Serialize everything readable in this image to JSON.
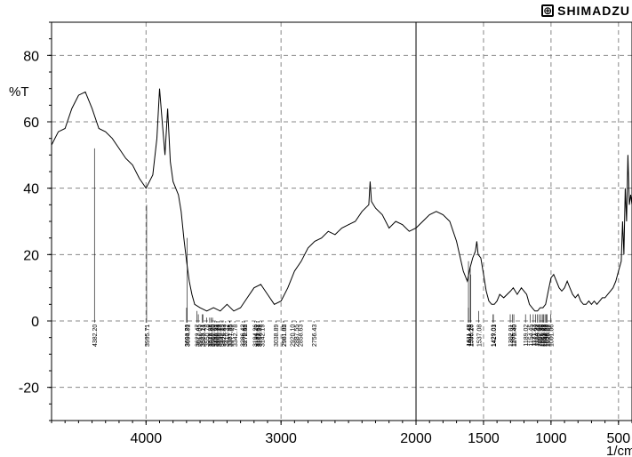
{
  "brand": {
    "name": "SHIMADZU",
    "logo_icon": "shimadzu-logo-icon"
  },
  "chart_data": {
    "type": "line",
    "title": "",
    "xlabel": "1/cm",
    "ylabel": "%T",
    "xlim": [
      4700,
      400
    ],
    "ylim": [
      -30,
      90
    ],
    "x_ticks": [
      4000,
      3000,
      2000,
      1500,
      1000,
      500
    ],
    "y_ticks": [
      80,
      60,
      40,
      20,
      0,
      -20
    ],
    "grid": true,
    "x_axis_reversed": true,
    "series": [
      {
        "color": "#000000",
        "points": [
          [
            4700,
            53
          ],
          [
            4650,
            57
          ],
          [
            4600,
            58
          ],
          [
            4550,
            64
          ],
          [
            4500,
            68
          ],
          [
            4450,
            69
          ],
          [
            4400,
            64
          ],
          [
            4350,
            58
          ],
          [
            4300,
            57
          ],
          [
            4250,
            55
          ],
          [
            4200,
            52
          ],
          [
            4150,
            49
          ],
          [
            4100,
            47
          ],
          [
            4050,
            43
          ],
          [
            4000,
            40
          ],
          [
            3950,
            44
          ],
          [
            3920,
            55
          ],
          [
            3900,
            70
          ],
          [
            3880,
            60
          ],
          [
            3860,
            50
          ],
          [
            3840,
            64
          ],
          [
            3820,
            48
          ],
          [
            3800,
            42
          ],
          [
            3780,
            40
          ],
          [
            3760,
            38
          ],
          [
            3740,
            33
          ],
          [
            3720,
            25
          ],
          [
            3700,
            18
          ],
          [
            3680,
            12
          ],
          [
            3660,
            8
          ],
          [
            3640,
            5
          ],
          [
            3600,
            4
          ],
          [
            3550,
            3
          ],
          [
            3500,
            4
          ],
          [
            3450,
            3
          ],
          [
            3400,
            5
          ],
          [
            3350,
            3
          ],
          [
            3300,
            4
          ],
          [
            3250,
            7
          ],
          [
            3200,
            10
          ],
          [
            3150,
            11
          ],
          [
            3100,
            8
          ],
          [
            3050,
            5
          ],
          [
            3000,
            6
          ],
          [
            2950,
            10
          ],
          [
            2900,
            15
          ],
          [
            2850,
            18
          ],
          [
            2800,
            22
          ],
          [
            2750,
            24
          ],
          [
            2700,
            25
          ],
          [
            2650,
            27
          ],
          [
            2600,
            26
          ],
          [
            2550,
            28
          ],
          [
            2500,
            29
          ],
          [
            2450,
            30
          ],
          [
            2400,
            33
          ],
          [
            2350,
            35
          ],
          [
            2340,
            42
          ],
          [
            2330,
            36
          ],
          [
            2300,
            34
          ],
          [
            2250,
            32
          ],
          [
            2200,
            28
          ],
          [
            2150,
            30
          ],
          [
            2100,
            29
          ],
          [
            2050,
            27
          ],
          [
            2000,
            28
          ],
          [
            1950,
            30
          ],
          [
            1900,
            32
          ],
          [
            1850,
            33
          ],
          [
            1800,
            32
          ],
          [
            1750,
            30
          ],
          [
            1700,
            24
          ],
          [
            1650,
            15
          ],
          [
            1620,
            12
          ],
          [
            1600,
            16
          ],
          [
            1580,
            19
          ],
          [
            1560,
            21
          ],
          [
            1550,
            24
          ],
          [
            1540,
            20
          ],
          [
            1520,
            19
          ],
          [
            1500,
            14
          ],
          [
            1480,
            9
          ],
          [
            1460,
            6
          ],
          [
            1440,
            5
          ],
          [
            1420,
            5
          ],
          [
            1400,
            6
          ],
          [
            1380,
            8
          ],
          [
            1350,
            7
          ],
          [
            1300,
            9
          ],
          [
            1280,
            10
          ],
          [
            1250,
            8
          ],
          [
            1220,
            10
          ],
          [
            1200,
            9
          ],
          [
            1180,
            8
          ],
          [
            1160,
            5
          ],
          [
            1140,
            4
          ],
          [
            1120,
            3
          ],
          [
            1100,
            3
          ],
          [
            1080,
            4
          ],
          [
            1060,
            4
          ],
          [
            1040,
            5
          ],
          [
            1020,
            9
          ],
          [
            1000,
            13
          ],
          [
            980,
            14
          ],
          [
            960,
            12
          ],
          [
            940,
            10
          ],
          [
            920,
            9
          ],
          [
            900,
            10
          ],
          [
            880,
            12
          ],
          [
            860,
            10
          ],
          [
            840,
            8
          ],
          [
            820,
            7
          ],
          [
            800,
            8
          ],
          [
            780,
            6
          ],
          [
            760,
            5
          ],
          [
            740,
            5
          ],
          [
            720,
            6
          ],
          [
            700,
            5
          ],
          [
            680,
            6
          ],
          [
            660,
            5
          ],
          [
            640,
            6
          ],
          [
            620,
            7
          ],
          [
            600,
            7
          ],
          [
            580,
            8
          ],
          [
            560,
            9
          ],
          [
            540,
            10
          ],
          [
            520,
            12
          ],
          [
            500,
            15
          ],
          [
            480,
            18
          ],
          [
            470,
            30
          ],
          [
            460,
            20
          ],
          [
            450,
            40
          ],
          [
            440,
            30
          ],
          [
            430,
            50
          ],
          [
            420,
            35
          ],
          [
            410,
            38
          ],
          [
            400,
            35
          ]
        ]
      }
    ],
    "peak_labels": [
      {
        "wn": 4382.2,
        "text": "4382.20",
        "y": 52
      },
      {
        "wn": 3995.71,
        "text": "3995.71",
        "y": 35
      },
      {
        "wn": 3694.81,
        "text": "3694.81",
        "y": 25
      },
      {
        "wn": 3699.7,
        "text": "3699.70",
        "y": 4
      },
      {
        "wn": 3622.47,
        "text": "3622.47",
        "y": 3
      },
      {
        "wn": 3612.85,
        "text": "3612.85",
        "y": 2
      },
      {
        "wn": 3583.14,
        "text": "3583.14",
        "y": 2
      },
      {
        "wn": 3579.21,
        "text": "3579.21",
        "y": 2
      },
      {
        "wn": 3550.78,
        "text": "3550.78",
        "y": 1
      },
      {
        "wn": 3528.88,
        "text": "3528.88",
        "y": 1
      },
      {
        "wn": 3516.45,
        "text": "3516.45",
        "y": 1
      },
      {
        "wn": 3507.7,
        "text": "3507.70",
        "y": 1
      },
      {
        "wn": 3489.9,
        "text": "3489.90",
        "y": 0
      },
      {
        "wn": 3480.31,
        "text": "3480.31",
        "y": 0
      },
      {
        "wn": 3469.1,
        "text": "3469.10",
        "y": 0
      },
      {
        "wn": 3459.43,
        "text": "3459.43",
        "y": 0
      },
      {
        "wn": 3442.13,
        "text": "3442.13",
        "y": 0
      },
      {
        "wn": 3429.83,
        "text": "3429.83",
        "y": 0
      },
      {
        "wn": 3410.32,
        "text": "3410.32",
        "y": 0
      },
      {
        "wn": 3381.35,
        "text": "3381.35",
        "y": 0
      },
      {
        "wn": 3377.95,
        "text": "3377.95",
        "y": 0
      },
      {
        "wn": 3342.78,
        "text": "3342.78",
        "y": 0
      },
      {
        "wn": 3286.42,
        "text": "3286.42",
        "y": 0
      },
      {
        "wn": 3272.52,
        "text": "3272.52",
        "y": 0
      },
      {
        "wn": 3270.45,
        "text": "3270.45",
        "y": 0
      },
      {
        "wn": 3194.26,
        "text": "3194.26",
        "y": 0
      },
      {
        "wn": 3181.72,
        "text": "3181.72",
        "y": 0
      },
      {
        "wn": 3172.07,
        "text": "3172.07",
        "y": 0
      },
      {
        "wn": 3163.39,
        "text": "3163.39",
        "y": 0
      },
      {
        "wn": 3142.19,
        "text": "3142.19",
        "y": 0
      },
      {
        "wn": 3038.89,
        "text": "3038.89",
        "y": 0
      },
      {
        "wn": 2981.82,
        "text": "2981.82",
        "y": 0
      },
      {
        "wn": 2981.05,
        "text": "2981.05",
        "y": 0
      },
      {
        "wn": 2920.1,
        "text": "2920.10",
        "y": 0
      },
      {
        "wn": 2887.55,
        "text": "2887.55",
        "y": 0
      },
      {
        "wn": 2858.63,
        "text": "2858.63",
        "y": 0
      },
      {
        "wn": 2756.43,
        "text": "2756.43",
        "y": 0
      },
      {
        "wn": 1611.43,
        "text": "1611.43",
        "y": 18
      },
      {
        "wn": 1598.18,
        "text": "1598.18",
        "y": 16
      },
      {
        "wn": 1595.2,
        "text": "1595.20",
        "y": 14
      },
      {
        "wn": 1611.45,
        "text": "1611.45",
        "y": 4
      },
      {
        "wn": 1537.08,
        "text": "1537.08",
        "y": 3
      },
      {
        "wn": 1427.03,
        "text": "1427.03",
        "y": 2
      },
      {
        "wn": 1429.01,
        "text": "1429.01",
        "y": 2
      },
      {
        "wn": 1302.01,
        "text": "1302.01",
        "y": 2
      },
      {
        "wn": 1285.35,
        "text": "1285.35",
        "y": 2
      },
      {
        "wn": 1275.4,
        "text": "1275.40",
        "y": 2
      },
      {
        "wn": 1189.02,
        "text": "1189.02",
        "y": 2
      },
      {
        "wn": 1154.45,
        "text": "1154.45",
        "y": 2
      },
      {
        "wn": 1131.43,
        "text": "1131.43",
        "y": 2
      },
      {
        "wn": 1114.9,
        "text": "1114.90",
        "y": 2
      },
      {
        "wn": 1100.44,
        "text": "1100.44",
        "y": 2
      },
      {
        "wn": 1087.9,
        "text": "1087.90",
        "y": 2
      },
      {
        "wn": 1076.35,
        "text": "1076.35",
        "y": 2
      },
      {
        "wn": 1063.79,
        "text": "1063.79",
        "y": 2
      },
      {
        "wn": 1053.93,
        "text": "1053.93",
        "y": 2
      },
      {
        "wn": 1044.59,
        "text": "1044.59",
        "y": 2
      },
      {
        "wn": 1034.24,
        "text": "1034.24",
        "y": 2
      },
      {
        "wn": 1028.52,
        "text": "1028.52",
        "y": 2
      },
      {
        "wn": 1001.06,
        "text": "1001.06",
        "y": 2
      }
    ]
  }
}
